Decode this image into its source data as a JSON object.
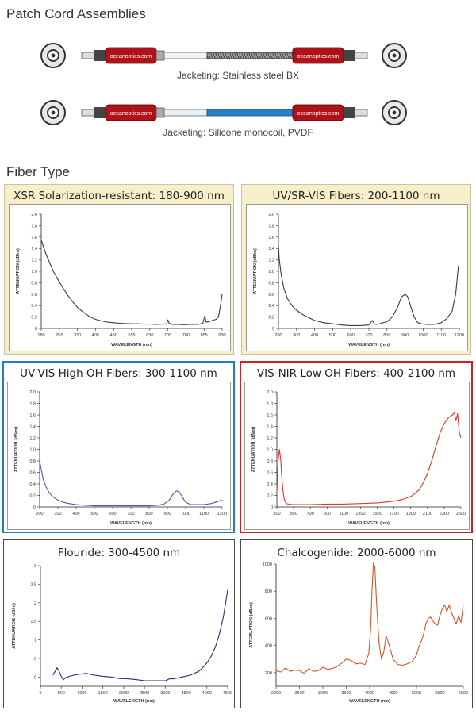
{
  "patch_cords": {
    "title": "Patch Cord Assemblies",
    "connector_brand": "oceanoptics.com",
    "cords": [
      {
        "caption": "Jacketing: Stainless steel BX",
        "jacket_color": "#e8e8e8",
        "braided": true
      },
      {
        "caption": "Jacketing: Silicone monocoil, PVDF",
        "jacket_color": "#2a7fc0",
        "braided": false
      }
    ]
  },
  "fiber_type": {
    "title": "Fiber Type"
  },
  "colors": {
    "panel_yellow_bg": "#f7efc9",
    "panel_yellow_border": "#c8c2a6",
    "panel_blue_border": "#1b7fc2",
    "panel_red_border": "#d01f2a",
    "panel_plain_border": "#4a4a4a",
    "connector_red": "#b0121a"
  },
  "chart_data": [
    {
      "type": "line",
      "title": "XSR Solarization-resistant: 180-900 nm",
      "xlabel": "WAVELENGTH (nm)",
      "ylabel": "ATTENUATION (dB/m)",
      "xlim": [
        180,
        930
      ],
      "ylim": [
        0,
        2.0
      ],
      "xticks": [
        180,
        255,
        330,
        405,
        480,
        555,
        630,
        705,
        780,
        855,
        930
      ],
      "yticks": [
        0,
        0.2,
        0.4,
        0.6,
        0.8,
        1.0,
        1.2,
        1.4,
        1.6,
        1.8,
        2.0
      ],
      "ytick_labels": [
        "0",
        "0.2",
        "0.4",
        "0.6",
        "0.8",
        "1.0",
        "1.2",
        "1.4",
        "1.6",
        "1.8",
        "2.0"
      ],
      "line_color": "#3a3a3a",
      "series": [
        {
          "x": [
            180,
            190,
            200,
            215,
            230,
            250,
            270,
            290,
            310,
            330,
            355,
            380,
            405,
            430,
            455,
            480,
            505,
            530,
            555,
            580,
            605,
            630,
            655,
            680,
            700,
            705,
            710,
            720,
            740,
            770,
            800,
            830,
            850,
            858,
            864,
            875,
            890,
            905,
            915,
            925,
            930
          ],
          "y": [
            1.55,
            1.42,
            1.3,
            1.15,
            1.0,
            0.85,
            0.71,
            0.58,
            0.47,
            0.37,
            0.28,
            0.21,
            0.16,
            0.13,
            0.11,
            0.1,
            0.09,
            0.085,
            0.08,
            0.08,
            0.075,
            0.075,
            0.07,
            0.075,
            0.08,
            0.15,
            0.09,
            0.07,
            0.07,
            0.065,
            0.07,
            0.07,
            0.09,
            0.22,
            0.11,
            0.12,
            0.14,
            0.16,
            0.2,
            0.45,
            0.6
          ]
        }
      ]
    },
    {
      "type": "line",
      "title": "UV/SR-VIS Fibers: 200-1100 nm",
      "xlabel": "WAVELENGTH (nm)",
      "ylabel": "ATTENUATION (dB/m)",
      "xlim": [
        200,
        1200
      ],
      "ylim": [
        0,
        2.0
      ],
      "xticks": [
        200,
        300,
        400,
        500,
        600,
        700,
        800,
        900,
        1000,
        1100,
        1200
      ],
      "yticks": [
        0,
        0.2,
        0.4,
        0.6,
        0.8,
        1.0,
        1.2,
        1.4,
        1.6,
        1.8,
        2.0
      ],
      "ytick_labels": [
        "0",
        "0.2",
        "0.4",
        "0.6",
        "0.8",
        "1.0",
        "1.2",
        "1.4",
        "1.6",
        "1.8",
        "2.0"
      ],
      "line_color": "#3a3a3a",
      "series": [
        {
          "x": [
            200,
            205,
            215,
            230,
            250,
            275,
            300,
            330,
            360,
            400,
            450,
            500,
            550,
            600,
            650,
            700,
            720,
            730,
            740,
            760,
            800,
            830,
            860,
            880,
            900,
            915,
            930,
            950,
            970,
            990,
            1020,
            1060,
            1100,
            1130,
            1160,
            1180,
            1195
          ],
          "y": [
            1.45,
            1.2,
            0.95,
            0.7,
            0.52,
            0.4,
            0.32,
            0.25,
            0.2,
            0.14,
            0.1,
            0.08,
            0.06,
            0.05,
            0.05,
            0.06,
            0.14,
            0.08,
            0.07,
            0.08,
            0.12,
            0.2,
            0.38,
            0.55,
            0.6,
            0.55,
            0.4,
            0.2,
            0.1,
            0.08,
            0.07,
            0.07,
            0.1,
            0.17,
            0.3,
            0.6,
            1.1
          ]
        }
      ]
    },
    {
      "type": "line",
      "title": "UV-VIS High OH Fibers: 300-1100 nm",
      "xlabel": "WAVELENGTH (nm)",
      "ylabel": "ATTENUATION (dB/m)",
      "xlim": [
        200,
        1200
      ],
      "ylim": [
        0,
        2.0
      ],
      "xticks": [
        200,
        300,
        400,
        500,
        600,
        700,
        800,
        900,
        1000,
        1100,
        1200
      ],
      "yticks": [
        0,
        0.2,
        0.4,
        0.6,
        0.8,
        1.0,
        1.2,
        1.4,
        1.6,
        1.8,
        2.0
      ],
      "ytick_labels": [
        "0",
        "0.2",
        "0.4",
        "0.6",
        "0.8",
        "1.0",
        "1.2",
        "1.4",
        "1.6",
        "1.8",
        "2.0"
      ],
      "line_color": "#4a5aa8",
      "series": [
        {
          "x": [
            200,
            205,
            212,
            220,
            235,
            250,
            270,
            300,
            330,
            360,
            400,
            450,
            500,
            550,
            600,
            650,
            700,
            750,
            800,
            850,
            880,
            910,
            930,
            950,
            965,
            980,
            1000,
            1030,
            1060,
            1100,
            1140,
            1180,
            1200
          ],
          "y": [
            0.8,
            0.72,
            0.6,
            0.48,
            0.35,
            0.26,
            0.18,
            0.12,
            0.08,
            0.06,
            0.04,
            0.03,
            0.02,
            0.02,
            0.02,
            0.02,
            0.02,
            0.02,
            0.02,
            0.03,
            0.05,
            0.12,
            0.22,
            0.28,
            0.26,
            0.18,
            0.08,
            0.04,
            0.04,
            0.04,
            0.06,
            0.1,
            0.12
          ]
        }
      ]
    },
    {
      "type": "line",
      "title": "VIS-NIR Low OH Fibers: 400-2100 nm",
      "xlabel": "WAVELENGTH (nm)",
      "ylabel": "ATTENUATION (dB/m)",
      "xlim": [
        300,
        2500
      ],
      "ylim": [
        0,
        2.0
      ],
      "xticks": [
        300,
        500,
        700,
        900,
        1100,
        1300,
        1500,
        1700,
        1900,
        2100,
        2300,
        2500
      ],
      "yticks": [
        0,
        0.2,
        0.4,
        0.6,
        0.8,
        1.0,
        1.2,
        1.4,
        1.6,
        1.8,
        2.0
      ],
      "ytick_labels": [
        "0",
        "0.2",
        "0.4",
        "0.6",
        "0.8",
        "1.0",
        "1.2",
        "1.4",
        "1.6",
        "1.8",
        "2.0"
      ],
      "line_color": "#d93a25",
      "series": [
        {
          "x": [
            300,
            315,
            330,
            345,
            360,
            375,
            390,
            410,
            440,
            480,
            550,
            700,
            900,
            1100,
            1300,
            1500,
            1700,
            1800,
            1900,
            1950,
            2000,
            2050,
            2100,
            2150,
            2200,
            2250,
            2300,
            2350,
            2380,
            2400,
            2420,
            2440,
            2460,
            2480,
            2500
          ],
          "y": [
            0.25,
            0.8,
            1.0,
            0.85,
            0.5,
            0.25,
            0.12,
            0.06,
            0.05,
            0.04,
            0.04,
            0.04,
            0.05,
            0.05,
            0.06,
            0.07,
            0.1,
            0.13,
            0.18,
            0.23,
            0.3,
            0.42,
            0.58,
            0.8,
            1.05,
            1.28,
            1.45,
            1.55,
            1.58,
            1.6,
            1.65,
            1.5,
            1.62,
            1.3,
            1.2
          ]
        }
      ]
    },
    {
      "type": "line",
      "title": "Flouride: 300-4500 nm",
      "xlabel": "WAVELENGTH (nm)",
      "ylabel": "ATTENUATION (dB/m)",
      "xlim": [
        0,
        4500
      ],
      "ylim": [
        -0.25,
        3
      ],
      "xticks": [
        0,
        500,
        1000,
        1500,
        2000,
        2500,
        3000,
        3500,
        4000,
        4500
      ],
      "yticks": [
        0,
        0.5,
        1,
        1.5,
        2,
        2.5,
        3
      ],
      "ytick_labels": [
        "0",
        ".5",
        "1",
        "1.5",
        "2",
        "2.5",
        "3"
      ],
      "line_color": "#232d7a",
      "series": [
        {
          "x": [
            300,
            350,
            400,
            450,
            500,
            550,
            600,
            700,
            800,
            900,
            1000,
            1100,
            1200,
            1300,
            1500,
            1700,
            1900,
            2100,
            2300,
            2500,
            2700,
            2900,
            3000,
            3100,
            3200,
            3400,
            3600,
            3800,
            3900,
            4000,
            4100,
            4200,
            4300,
            4400,
            4500
          ],
          "y": [
            0.05,
            0.15,
            0.25,
            0.15,
            0.02,
            -0.08,
            -0.02,
            0.02,
            0.05,
            0.07,
            0.08,
            0.1,
            0.07,
            0.05,
            0.02,
            0.0,
            -0.04,
            -0.05,
            -0.07,
            -0.1,
            -0.1,
            -0.1,
            -0.1,
            -0.05,
            -0.05,
            0.0,
            0.05,
            0.15,
            0.25,
            0.38,
            0.55,
            0.8,
            1.15,
            1.65,
            2.35
          ]
        }
      ]
    },
    {
      "type": "line",
      "title": "Chalcogenide: 2000-6000 nm",
      "xlabel": "WAVELENGTH (nm)",
      "ylabel": "ATTENUATION (dB/m)",
      "xlim": [
        2000,
        6000
      ],
      "ylim": [
        100,
        1000
      ],
      "xticks": [
        2000,
        2500,
        3000,
        3500,
        4000,
        4500,
        5000,
        5500,
        6000
      ],
      "yticks": [
        200,
        400,
        600,
        800,
        1000
      ],
      "ytick_labels": [
        "200",
        "400",
        "600",
        "800",
        "1000"
      ],
      "line_color": "#d2562a",
      "series": [
        {
          "x": [
            2000,
            2100,
            2200,
            2300,
            2400,
            2500,
            2600,
            2700,
            2800,
            2900,
            3000,
            3100,
            3200,
            3300,
            3400,
            3500,
            3600,
            3700,
            3800,
            3900,
            3980,
            4020,
            4050,
            4080,
            4110,
            4150,
            4200,
            4250,
            4300,
            4350,
            4400,
            4500,
            4600,
            4700,
            4800,
            4900,
            5000,
            5050,
            5100,
            5150,
            5200,
            5250,
            5300,
            5350,
            5400,
            5450,
            5500,
            5550,
            5600,
            5650,
            5700,
            5750,
            5800,
            5850,
            5900,
            5950,
            6000
          ],
          "y": [
            215,
            205,
            235,
            210,
            220,
            215,
            195,
            230,
            210,
            215,
            240,
            225,
            230,
            245,
            270,
            300,
            290,
            265,
            270,
            260,
            340,
            520,
            800,
            1010,
            980,
            700,
            420,
            300,
            350,
            470,
            420,
            300,
            260,
            255,
            265,
            280,
            330,
            390,
            430,
            480,
            560,
            600,
            610,
            580,
            560,
            550,
            620,
            670,
            700,
            650,
            700,
            640,
            600,
            560,
            620,
            570,
            700
          ]
        }
      ]
    }
  ]
}
